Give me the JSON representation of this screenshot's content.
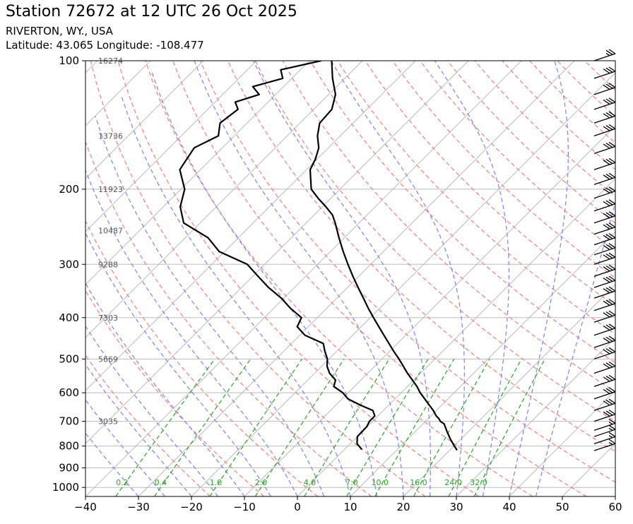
{
  "header": {
    "title": "Station 72672 at 12 UTC 26 Oct 2025",
    "station": "RIVERTON, WY., USA",
    "location": "Latitude: 43.065 Longitude: -108.477"
  },
  "chart_data": {
    "type": "skew-t log-p",
    "xlim": [
      -40,
      60
    ],
    "plim": [
      1050,
      100
    ],
    "log_pressure_axis": true,
    "x_ticks": [
      "−40",
      "−30",
      "−20",
      "−10",
      "0",
      "10",
      "20",
      "30",
      "40",
      "50",
      "60"
    ],
    "p_ticks": [
      "100",
      "200",
      "300",
      "400",
      "500",
      "600",
      "700",
      "800",
      "900",
      "1000"
    ],
    "height_labels": [
      {
        "p": 100,
        "label": "16274"
      },
      {
        "p": 150,
        "label": "13736"
      },
      {
        "p": 200,
        "label": "11923"
      },
      {
        "p": 250,
        "label": "10487"
      },
      {
        "p": 300,
        "label": "9288"
      },
      {
        "p": 400,
        "label": "7303"
      },
      {
        "p": 500,
        "label": "5669"
      },
      {
        "p": 700,
        "label": "3035"
      }
    ],
    "mixing_ratio_labels": [
      "0.2",
      "0.4",
      "1.0",
      "2.0",
      "4.0",
      "7.0",
      "10.0",
      "16.0",
      "24.0",
      "32.0"
    ],
    "temperature": {
      "p": [
        818,
        800,
        770,
        740,
        710,
        700,
        690,
        680,
        660,
        640,
        620,
        600,
        580,
        560,
        540,
        520,
        500,
        480,
        460,
        440,
        420,
        400,
        380,
        360,
        340,
        320,
        300,
        280,
        260,
        240,
        230,
        220,
        210,
        200,
        190,
        180,
        170,
        160,
        150,
        140,
        130,
        120,
        110,
        100
      ],
      "t": [
        21.4,
        20.1,
        18.0,
        16.0,
        14.0,
        12.8,
        12.0,
        11.0,
        9.4,
        7.5,
        5.6,
        3.6,
        1.8,
        -0.3,
        -2.5,
        -4.6,
        -6.8,
        -9.2,
        -11.6,
        -14.1,
        -16.7,
        -19.4,
        -22.2,
        -25.0,
        -28.0,
        -31.1,
        -34.3,
        -37.6,
        -41.0,
        -44.5,
        -46.5,
        -49.3,
        -52.4,
        -55.4,
        -57.3,
        -59.3,
        -60.3,
        -61.8,
        -64.3,
        -66.3,
        -66.6,
        -68.7,
        -72.3,
        -75.8
      ]
    },
    "dewpoint": {
      "p": [
        815,
        790,
        760,
        720,
        700,
        680,
        660,
        640,
        620,
        600,
        580,
        560,
        540,
        520,
        500,
        480,
        460,
        440,
        420,
        400,
        380,
        360,
        340,
        320,
        300,
        280,
        260,
        240,
        220,
        200,
        180,
        160,
        150,
        140,
        130,
        125,
        120,
        115,
        110,
        105,
        100
      ],
      "td": [
        3.3,
        1.3,
        0.0,
        -0.1,
        -0.6,
        -0.6,
        -2.0,
        -5.6,
        -8.9,
        -11.0,
        -13.9,
        -14.8,
        -17.2,
        -19.0,
        -20.3,
        -22.2,
        -24.0,
        -29.0,
        -32.1,
        -33.0,
        -36.9,
        -40.5,
        -44.9,
        -49.0,
        -53.3,
        -61.0,
        -65.7,
        -73.1,
        -76.8,
        -79.3,
        -83.9,
        -85.3,
        -83.0,
        -85.1,
        -84.3,
        -86.2,
        -83.1,
        -85.8,
        -81.7,
        -83.7,
        -77.8
      ]
    },
    "wind_barbs": [
      {
        "p": 820,
        "kt": 15
      },
      {
        "p": 790,
        "kt": 15
      },
      {
        "p": 760,
        "kt": 15
      },
      {
        "p": 735,
        "kt": 15
      },
      {
        "p": 700,
        "kt": 30
      },
      {
        "p": 660,
        "kt": 30
      },
      {
        "p": 620,
        "kt": 30
      },
      {
        "p": 580,
        "kt": 30
      },
      {
        "p": 540,
        "kt": 30
      },
      {
        "p": 500,
        "kt": 30
      },
      {
        "p": 470,
        "kt": 30
      },
      {
        "p": 440,
        "kt": 30
      },
      {
        "p": 410,
        "kt": 30
      },
      {
        "p": 385,
        "kt": 30
      },
      {
        "p": 360,
        "kt": 30
      },
      {
        "p": 340,
        "kt": 30
      },
      {
        "p": 320,
        "kt": 30
      },
      {
        "p": 300,
        "kt": 30
      },
      {
        "p": 285,
        "kt": 30
      },
      {
        "p": 270,
        "kt": 30
      },
      {
        "p": 255,
        "kt": 30
      },
      {
        "p": 240,
        "kt": 30
      },
      {
        "p": 225,
        "kt": 30
      },
      {
        "p": 210,
        "kt": 30
      },
      {
        "p": 195,
        "kt": 30
      },
      {
        "p": 180,
        "kt": 30
      },
      {
        "p": 165,
        "kt": 30
      },
      {
        "p": 150,
        "kt": 30
      },
      {
        "p": 140,
        "kt": 30
      },
      {
        "p": 130,
        "kt": 30
      },
      {
        "p": 120,
        "kt": 30
      },
      {
        "p": 110,
        "kt": 30
      },
      {
        "p": 100,
        "kt": 25
      }
    ],
    "colors": {
      "temperature": "#000000",
      "dewpoint": "#000000",
      "isotherms": "#bbbbbb",
      "dry_adiabats": "#f08080",
      "moist_adiabats": "#8080f0",
      "mixing_ratio": "#2ca02c",
      "height_labels": "#555555"
    }
  }
}
